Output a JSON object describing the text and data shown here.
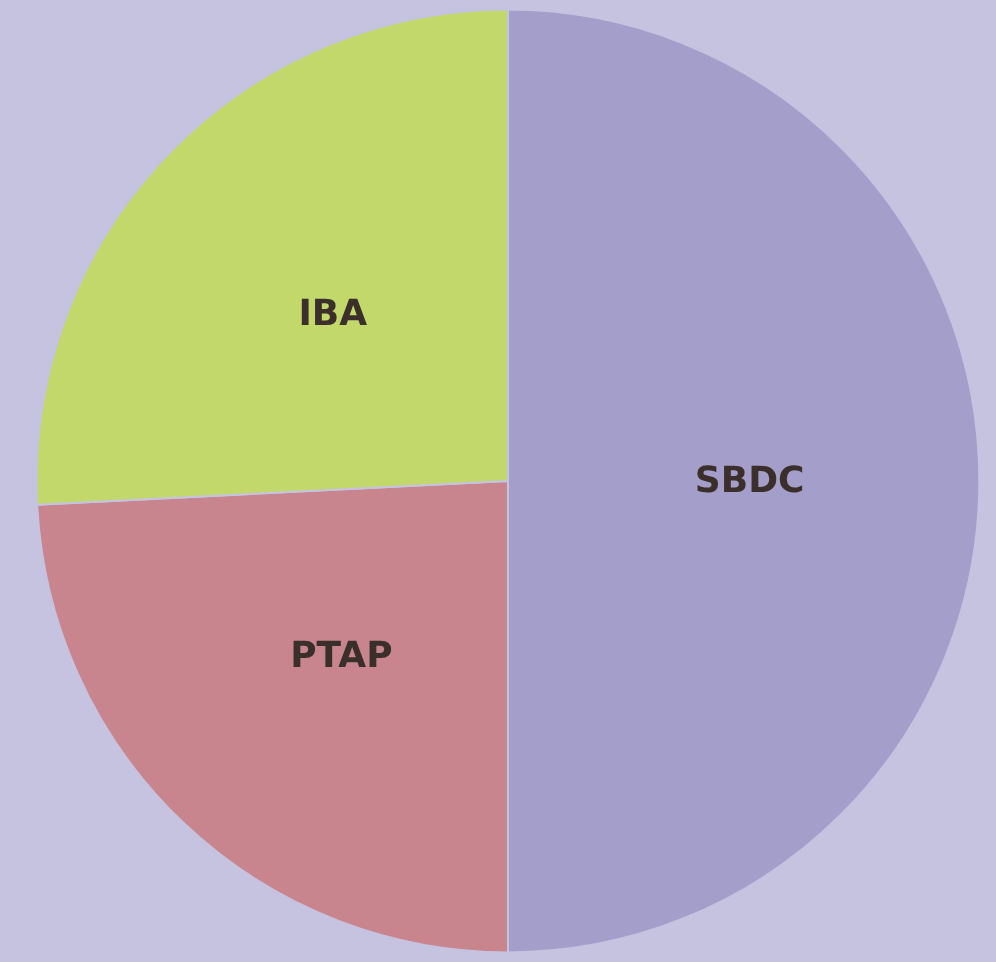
{
  "chart_data": {
    "type": "pie",
    "categories": [
      "SBDC",
      "PTAP",
      "IBA"
    ],
    "values": [
      50,
      24.2,
      25.8
    ],
    "colors": [
      "#a49ecb",
      "#c8858e",
      "#c2d86a"
    ]
  }
}
